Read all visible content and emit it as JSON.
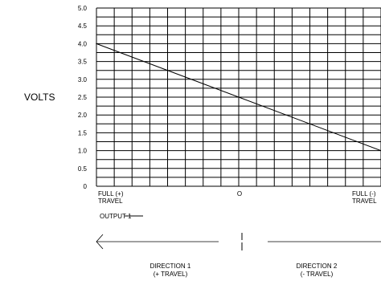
{
  "chart_data": {
    "type": "line",
    "ylabel": "VOLTS",
    "ylim": [
      0,
      5.0
    ],
    "yticks": [
      "5.0",
      "4.5",
      "4.0",
      "3.5",
      "3.0",
      "2.5",
      "2.0",
      "1.5",
      "1.0",
      "0.5",
      "0"
    ],
    "grid": true,
    "x_labels": {
      "left": [
        "FULL (+)",
        "TRAVEL"
      ],
      "center": "O",
      "right": [
        "FULL (-)",
        "TRAVEL"
      ]
    },
    "series": [
      {
        "x": [
          0,
          1
        ],
        "values": [
          4.0,
          1.0
        ]
      }
    ],
    "legend": "OUTPUT 1",
    "annotations": {
      "direction1": [
        "DIRECTION 1",
        "(+ TRAVEL)"
      ],
      "direction2": [
        "DIRECTION 2",
        "(- TRAVEL)"
      ]
    }
  }
}
